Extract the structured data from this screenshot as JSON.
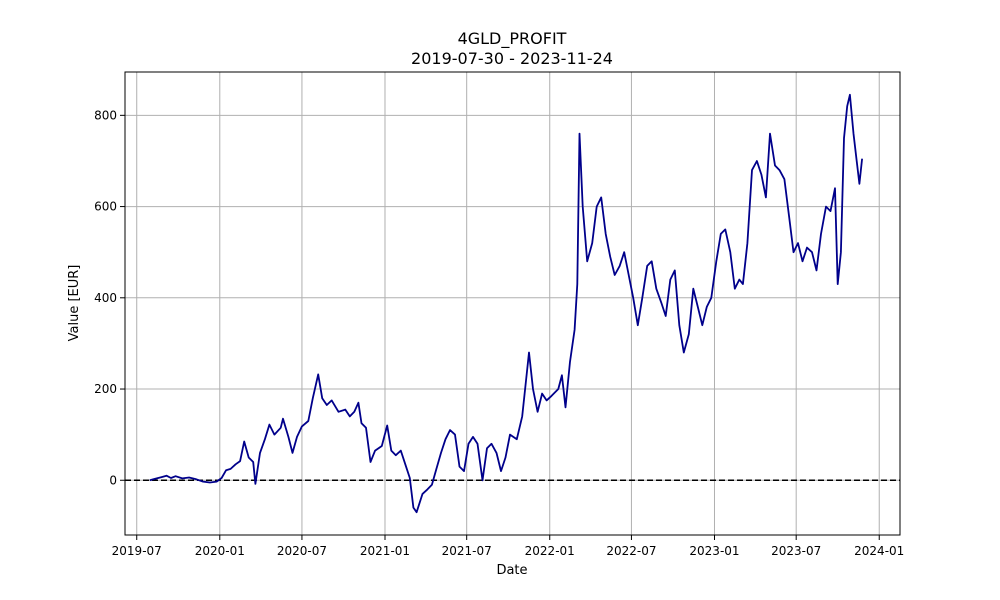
{
  "chart_data": {
    "type": "line",
    "title": "4GLD_PROFIT",
    "subtitle": "2019-07-30 - 2023-11-24",
    "xlabel": "Date",
    "ylabel": "Value [EUR]",
    "xlim": [
      "2019-06-05",
      "2024-02-16"
    ],
    "ylim": [
      -120,
      895
    ],
    "x_ticks": [
      "2019-07-01",
      "2020-01-01",
      "2020-07-01",
      "2021-01-01",
      "2021-07-01",
      "2022-01-01",
      "2022-07-01",
      "2023-01-01",
      "2023-07-01",
      "2024-01-01"
    ],
    "x_tick_labels": [
      "2019-07",
      "2020-01",
      "2020-07",
      "2021-01",
      "2021-07",
      "2022-01",
      "2022-07",
      "2023-01",
      "2023-07",
      "2024-01"
    ],
    "y_ticks": [
      0,
      200,
      400,
      600,
      800
    ],
    "y_tick_labels": [
      "0",
      "200",
      "400",
      "600",
      "800"
    ],
    "grid": true,
    "reference_line": {
      "y": 0,
      "style": "dashed",
      "color": "#000000"
    },
    "series": [
      {
        "color": "#00008b",
        "points": [
          [
            "2019-07-30",
            0
          ],
          [
            "2019-08-10",
            3
          ],
          [
            "2019-08-25",
            7
          ],
          [
            "2019-09-05",
            10
          ],
          [
            "2019-09-15",
            5
          ],
          [
            "2019-09-25",
            9
          ],
          [
            "2019-10-10",
            4
          ],
          [
            "2019-10-25",
            6
          ],
          [
            "2019-11-10",
            2
          ],
          [
            "2019-11-25",
            -3
          ],
          [
            "2019-12-10",
            -5
          ],
          [
            "2019-12-25",
            -3
          ],
          [
            "2020-01-05",
            5
          ],
          [
            "2020-01-15",
            22
          ],
          [
            "2020-01-25",
            25
          ],
          [
            "2020-02-05",
            35
          ],
          [
            "2020-02-15",
            42
          ],
          [
            "2020-02-24",
            85
          ],
          [
            "2020-03-05",
            50
          ],
          [
            "2020-03-15",
            40
          ],
          [
            "2020-03-20",
            -8
          ],
          [
            "2020-03-30",
            60
          ],
          [
            "2020-04-10",
            90
          ],
          [
            "2020-04-20",
            122
          ],
          [
            "2020-05-01",
            100
          ],
          [
            "2020-05-15",
            115
          ],
          [
            "2020-05-20",
            135
          ],
          [
            "2020-06-01",
            95
          ],
          [
            "2020-06-10",
            60
          ],
          [
            "2020-06-20",
            95
          ],
          [
            "2020-07-01",
            118
          ],
          [
            "2020-07-15",
            130
          ],
          [
            "2020-07-25",
            180
          ],
          [
            "2020-08-06",
            232
          ],
          [
            "2020-08-15",
            180
          ],
          [
            "2020-08-25",
            165
          ],
          [
            "2020-09-05",
            175
          ],
          [
            "2020-09-20",
            150
          ],
          [
            "2020-10-05",
            155
          ],
          [
            "2020-10-15",
            140
          ],
          [
            "2020-10-25",
            150
          ],
          [
            "2020-11-03",
            170
          ],
          [
            "2020-11-10",
            125
          ],
          [
            "2020-11-20",
            115
          ],
          [
            "2020-11-30",
            40
          ],
          [
            "2020-12-10",
            65
          ],
          [
            "2020-12-25",
            75
          ],
          [
            "2021-01-06",
            120
          ],
          [
            "2021-01-15",
            65
          ],
          [
            "2021-01-25",
            55
          ],
          [
            "2021-02-05",
            65
          ],
          [
            "2021-02-15",
            35
          ],
          [
            "2021-02-25",
            5
          ],
          [
            "2021-03-05",
            -60
          ],
          [
            "2021-03-12",
            -70
          ],
          [
            "2021-03-25",
            -30
          ],
          [
            "2021-04-05",
            -20
          ],
          [
            "2021-04-15",
            -10
          ],
          [
            "2021-04-25",
            25
          ],
          [
            "2021-05-05",
            60
          ],
          [
            "2021-05-15",
            90
          ],
          [
            "2021-05-25",
            110
          ],
          [
            "2021-06-05",
            100
          ],
          [
            "2021-06-15",
            30
          ],
          [
            "2021-06-25",
            20
          ],
          [
            "2021-07-05",
            80
          ],
          [
            "2021-07-15",
            95
          ],
          [
            "2021-07-25",
            80
          ],
          [
            "2021-08-05",
            0
          ],
          [
            "2021-08-15",
            70
          ],
          [
            "2021-08-25",
            80
          ],
          [
            "2021-09-05",
            60
          ],
          [
            "2021-09-15",
            20
          ],
          [
            "2021-09-25",
            50
          ],
          [
            "2021-10-05",
            100
          ],
          [
            "2021-10-20",
            90
          ],
          [
            "2021-11-01",
            140
          ],
          [
            "2021-11-16",
            280
          ],
          [
            "2021-11-25",
            200
          ],
          [
            "2021-12-05",
            150
          ],
          [
            "2021-12-15",
            190
          ],
          [
            "2021-12-25",
            175
          ],
          [
            "2022-01-05",
            185
          ],
          [
            "2022-01-20",
            200
          ],
          [
            "2022-01-28",
            230
          ],
          [
            "2022-02-05",
            160
          ],
          [
            "2022-02-15",
            260
          ],
          [
            "2022-02-25",
            330
          ],
          [
            "2022-03-03",
            430
          ],
          [
            "2022-03-08",
            760
          ],
          [
            "2022-03-15",
            600
          ],
          [
            "2022-03-25",
            480
          ],
          [
            "2022-04-05",
            520
          ],
          [
            "2022-04-15",
            600
          ],
          [
            "2022-04-25",
            620
          ],
          [
            "2022-05-05",
            540
          ],
          [
            "2022-05-15",
            490
          ],
          [
            "2022-05-25",
            450
          ],
          [
            "2022-06-05",
            470
          ],
          [
            "2022-06-15",
            500
          ],
          [
            "2022-06-25",
            450
          ],
          [
            "2022-07-05",
            400
          ],
          [
            "2022-07-15",
            340
          ],
          [
            "2022-07-25",
            400
          ],
          [
            "2022-08-05",
            470
          ],
          [
            "2022-08-15",
            480
          ],
          [
            "2022-08-25",
            420
          ],
          [
            "2022-09-05",
            390
          ],
          [
            "2022-09-15",
            360
          ],
          [
            "2022-09-25",
            440
          ],
          [
            "2022-10-05",
            460
          ],
          [
            "2022-10-15",
            340
          ],
          [
            "2022-10-25",
            280
          ],
          [
            "2022-11-05",
            320
          ],
          [
            "2022-11-15",
            420
          ],
          [
            "2022-11-25",
            380
          ],
          [
            "2022-12-05",
            340
          ],
          [
            "2022-12-15",
            380
          ],
          [
            "2022-12-25",
            400
          ],
          [
            "2023-01-05",
            480
          ],
          [
            "2023-01-15",
            540
          ],
          [
            "2023-01-25",
            550
          ],
          [
            "2023-02-05",
            500
          ],
          [
            "2023-02-15",
            420
          ],
          [
            "2023-02-25",
            440
          ],
          [
            "2023-03-05",
            430
          ],
          [
            "2023-03-15",
            520
          ],
          [
            "2023-03-25",
            680
          ],
          [
            "2023-04-05",
            700
          ],
          [
            "2023-04-15",
            670
          ],
          [
            "2023-04-25",
            620
          ],
          [
            "2023-05-04",
            760
          ],
          [
            "2023-05-15",
            690
          ],
          [
            "2023-05-25",
            680
          ],
          [
            "2023-06-05",
            660
          ],
          [
            "2023-06-15",
            580
          ],
          [
            "2023-06-25",
            500
          ],
          [
            "2023-07-05",
            520
          ],
          [
            "2023-07-15",
            480
          ],
          [
            "2023-07-25",
            510
          ],
          [
            "2023-08-05",
            500
          ],
          [
            "2023-08-15",
            460
          ],
          [
            "2023-08-25",
            540
          ],
          [
            "2023-09-05",
            600
          ],
          [
            "2023-09-15",
            590
          ],
          [
            "2023-09-25",
            640
          ],
          [
            "2023-10-01",
            430
          ],
          [
            "2023-10-08",
            500
          ],
          [
            "2023-10-15",
            750
          ],
          [
            "2023-10-22",
            820
          ],
          [
            "2023-10-28",
            845
          ],
          [
            "2023-11-05",
            760
          ],
          [
            "2023-11-12",
            700
          ],
          [
            "2023-11-18",
            650
          ],
          [
            "2023-11-24",
            705
          ]
        ]
      }
    ]
  }
}
